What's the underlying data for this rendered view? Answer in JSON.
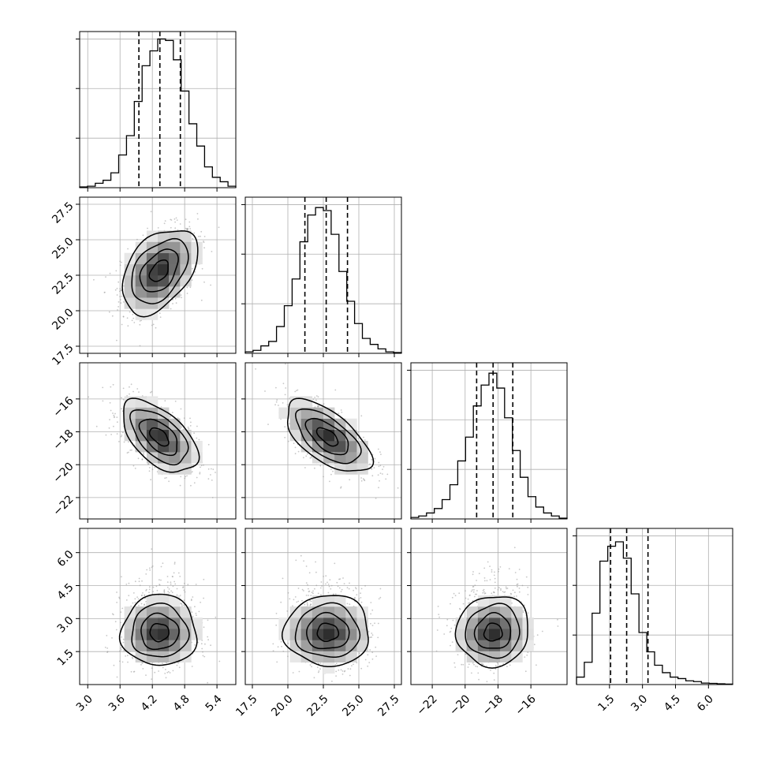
{
  "chart_data": {
    "type": "corner",
    "grid": true,
    "parameters": [
      {
        "xticks": [
          "3.0",
          "3.6",
          "4.2",
          "4.8",
          "5.4"
        ],
        "range": [
          2.85,
          5.75
        ],
        "quantiles": [
          3.95,
          4.34,
          4.72
        ],
        "hist_color": "#000000",
        "hist": [
          0.005,
          0.01,
          0.03,
          0.05,
          0.1,
          0.22,
          0.35,
          0.58,
          0.82,
          0.92,
          1.0,
          0.99,
          0.86,
          0.65,
          0.43,
          0.28,
          0.14,
          0.07,
          0.04,
          0.01
        ]
      },
      {
        "xticks": [
          "17.5",
          "20.0",
          "22.5",
          "25.0",
          "27.5"
        ],
        "range": [
          17.0,
          28.0
        ],
        "quantiles": [
          21.2,
          22.7,
          24.2
        ],
        "hist_color": "#000000",
        "hist": [
          0.01,
          0.02,
          0.05,
          0.08,
          0.18,
          0.32,
          0.5,
          0.75,
          0.93,
          0.98,
          0.96,
          0.8,
          0.55,
          0.35,
          0.2,
          0.1,
          0.06,
          0.03,
          0.01,
          0.005
        ]
      },
      {
        "xticks": [
          "-22",
          "-20",
          "-18",
          "-16"
        ],
        "range": [
          -23.3,
          -13.8
        ],
        "quantiles": [
          -19.3,
          -18.3,
          -17.1
        ],
        "hist_color": "#000000",
        "hist": [
          0.01,
          0.02,
          0.04,
          0.07,
          0.13,
          0.23,
          0.39,
          0.55,
          0.76,
          0.9,
          0.98,
          0.88,
          0.68,
          0.46,
          0.28,
          0.15,
          0.08,
          0.04,
          0.02,
          0.005
        ]
      },
      {
        "xticks": [
          "1.5",
          "3.0",
          "4.5",
          "6.0"
        ],
        "range": [
          0.0,
          7.1
        ],
        "quantiles": [
          1.55,
          2.28,
          3.25
        ],
        "hist_color": "#000000",
        "hist": [
          0.05,
          0.15,
          0.48,
          0.83,
          0.93,
          0.96,
          0.85,
          0.61,
          0.35,
          0.22,
          0.13,
          0.08,
          0.05,
          0.04,
          0.025,
          0.02,
          0.01,
          0.008,
          0.005,
          0.003
        ]
      }
    ],
    "yticks": {
      "row1": [
        "17.5",
        "20.0",
        "22.5",
        "25.0",
        "27.5"
      ],
      "row2": [
        "-22",
        "-20",
        "-18",
        "-16"
      ],
      "row3": [
        "1.5",
        "3.0",
        "4.5",
        "6.0"
      ]
    },
    "pairs": [
      {
        "row": 1,
        "col": 0,
        "mean": [
          4.33,
          22.8
        ],
        "std": [
          0.35,
          1.5
        ],
        "rho": 0.42
      },
      {
        "row": 2,
        "col": 0,
        "mean": [
          4.33,
          -18.3
        ],
        "std": [
          0.35,
          1.1
        ],
        "rho": -0.55
      },
      {
        "row": 2,
        "col": 1,
        "mean": [
          22.8,
          -18.3
        ],
        "std": [
          1.5,
          1.1
        ],
        "rho": -0.62
      },
      {
        "row": 3,
        "col": 0,
        "mean": [
          4.33,
          2.35
        ],
        "std": [
          0.35,
          0.75
        ],
        "rho": 0.0
      },
      {
        "row": 3,
        "col": 1,
        "mean": [
          22.8,
          2.35
        ],
        "std": [
          1.5,
          0.75
        ],
        "rho": 0.0
      },
      {
        "row": 3,
        "col": 2,
        "mean": [
          -18.3,
          2.35
        ],
        "std": [
          1.1,
          0.75
        ],
        "rho": 0.05
      }
    ],
    "contour_levels_sigma": [
      0.5,
      1.0,
      1.5,
      2.0
    ]
  }
}
